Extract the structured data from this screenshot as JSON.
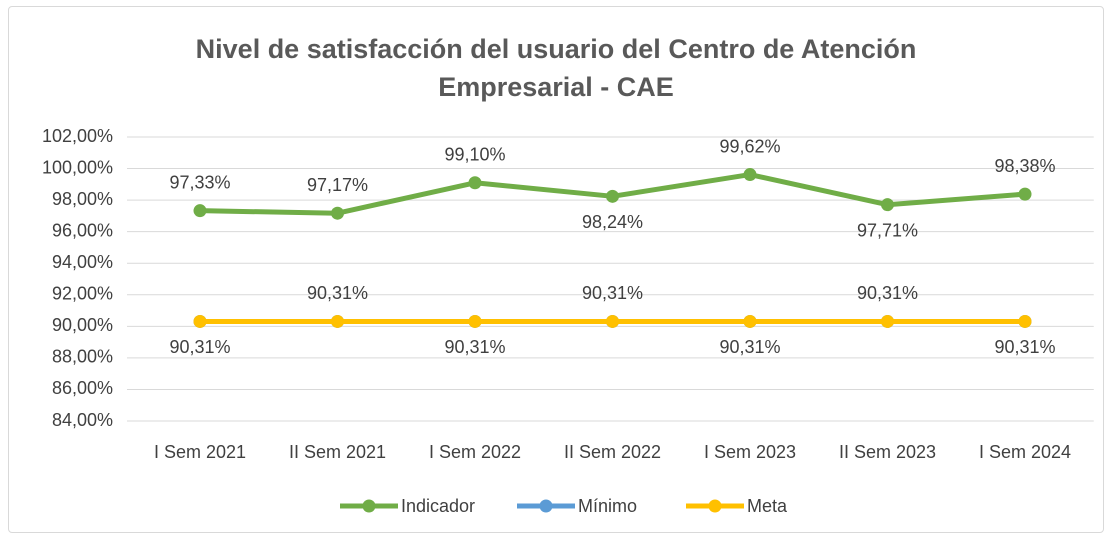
{
  "chart_data": {
    "type": "line",
    "title": "Nivel de satisfacción del usuario del Centro de Atención Empresarial - CAE",
    "categories": [
      "I Sem 2021",
      "II Sem 2021",
      "I Sem 2022",
      "II Sem 2022",
      "I Sem 2023",
      "II Sem 2023",
      "I Sem 2024"
    ],
    "series": [
      {
        "name": "Indicador",
        "color": "#70ad47",
        "values": [
          97.33,
          97.17,
          99.1,
          98.24,
          99.62,
          97.71,
          98.38
        ],
        "value_labels": [
          "97,33%",
          "97,17%",
          "99,10%",
          "98,24%",
          "99,62%",
          "97,71%",
          "98,38%"
        ]
      },
      {
        "name": "Mínimo",
        "color": "#5b9bd5",
        "values": [
          90.31,
          90.31,
          90.31,
          90.31,
          90.31,
          90.31,
          90.31
        ]
      },
      {
        "name": "Meta",
        "color": "#ffc000",
        "values": [
          90.31,
          90.31,
          90.31,
          90.31,
          90.31,
          90.31,
          90.31
        ],
        "value_labels": [
          "90,31%",
          "90,31%",
          "90,31%",
          "90,31%",
          "90,31%",
          "90,31%",
          "90,31%"
        ]
      }
    ],
    "ylim": [
      84,
      102
    ],
    "yticks": [
      {
        "value": 84,
        "label": "84,00%"
      },
      {
        "value": 86,
        "label": "86,00%"
      },
      {
        "value": 88,
        "label": "88,00%"
      },
      {
        "value": 90,
        "label": "90,00%"
      },
      {
        "value": 92,
        "label": "92,00%"
      },
      {
        "value": 94,
        "label": "94,00%"
      },
      {
        "value": 96,
        "label": "96,00%"
      },
      {
        "value": 98,
        "label": "98,00%"
      },
      {
        "value": 100,
        "label": "100,00%"
      },
      {
        "value": 102,
        "label": "102,00%"
      }
    ],
    "grid": true,
    "legend": "bottom"
  }
}
